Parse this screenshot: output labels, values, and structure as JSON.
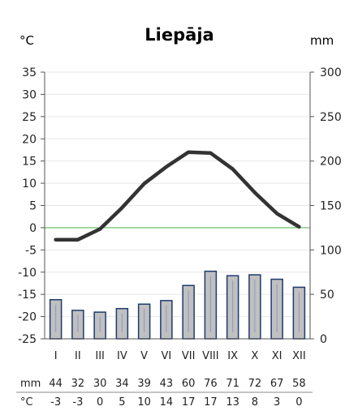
{
  "chart_data": {
    "type": "climate-chart",
    "title": "Liepāja",
    "left_unit": "°C",
    "right_unit": "mm",
    "months": [
      "I",
      "II",
      "III",
      "IV",
      "V",
      "VI",
      "VII",
      "VIII",
      "IX",
      "X",
      "XI",
      "XII"
    ],
    "temperature_c": [
      -2.7,
      -2.7,
      -0.3,
      4.5,
      9.9,
      13.7,
      17.0,
      16.8,
      13.2,
      7.9,
      3.2,
      0.2
    ],
    "precipitation_mm": [
      44,
      32,
      30,
      34,
      39,
      43,
      60,
      76,
      71,
      72,
      67,
      58
    ],
    "temperature_axis": {
      "min": -25,
      "max": 35,
      "step": 5
    },
    "precipitation_axis": {
      "min": 0,
      "max": 300,
      "step": 50
    },
    "table": {
      "mm_label": "mm",
      "c_label": "°C",
      "mm_values": [
        "44",
        "32",
        "30",
        "34",
        "39",
        "43",
        "60",
        "76",
        "71",
        "72",
        "67",
        "58"
      ],
      "c_values": [
        "-3",
        "-3",
        "0",
        "5",
        "10",
        "14",
        "17",
        "17",
        "13",
        "8",
        "3",
        "0"
      ]
    },
    "colors": {
      "temperature_line": "#333333",
      "bar_fill": "#c0c0c0",
      "bar_stroke": "#1f3a6e",
      "zero_line": "#5cb85c",
      "grid": "#e6e6e6"
    }
  }
}
